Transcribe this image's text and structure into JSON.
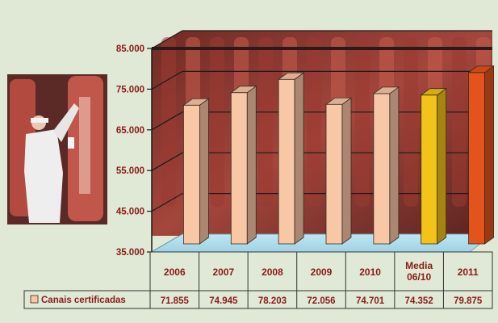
{
  "chart_data": {
    "type": "bar",
    "categories": [
      "2006",
      "2007",
      "2008",
      "2009",
      "2010",
      "Media\n06/10",
      "2011"
    ],
    "series": [
      {
        "name": "Canais certificadas",
        "values": [
          71855,
          74945,
          78203,
          72056,
          74701,
          74352,
          79875
        ],
        "value_labels": [
          "71.855",
          "74.945",
          "78.203",
          "72.056",
          "74.701",
          "74.352",
          "79.875"
        ]
      }
    ],
    "ylim": [
      35000,
      85000
    ],
    "yticks": [
      35000,
      45000,
      55000,
      65000,
      75000,
      85000
    ],
    "ytick_labels": [
      "35.000",
      "45.000",
      "55.000",
      "65.000",
      "75.000",
      "85.000"
    ],
    "grid": true,
    "legend": "bottom-left, inside data table",
    "colors": {
      "bars": [
        "#f8c7a6",
        "#f8c7a6",
        "#f8c7a6",
        "#f8c7a6",
        "#f8c7a6",
        "#f2c318",
        "#e5531c"
      ],
      "axis_labels": "#8b1a1a",
      "table_text": "#8b1a1a",
      "background": "#dfe9d5"
    }
  }
}
